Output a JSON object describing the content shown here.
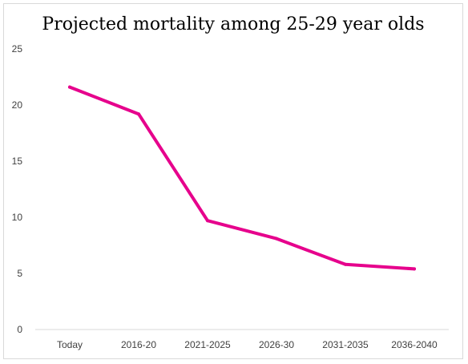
{
  "chart_data": {
    "type": "line",
    "title": "Projected mortality among 25-29 year olds",
    "xlabel": "",
    "ylabel": "",
    "categories": [
      "Today",
      "2016-20",
      "2021-2025",
      "2026-30",
      "2031-2035",
      "2036-2040"
    ],
    "series": [
      {
        "color": "#e6008c",
        "values": [
          21.6,
          19.2,
          9.7,
          8.1,
          5.8,
          5.4
        ]
      }
    ],
    "ylim": [
      0,
      25
    ],
    "yticks": [
      0,
      5,
      10,
      15,
      20,
      25
    ],
    "grid": false,
    "legend": "none"
  }
}
